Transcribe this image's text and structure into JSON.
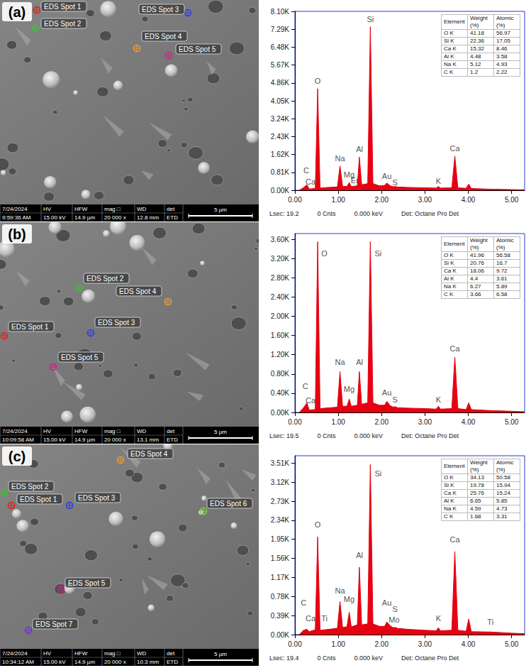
{
  "chart_data": [
    {
      "type": "line",
      "color": "#e60012",
      "grid": false,
      "x": [
        0.1,
        0.2,
        0.277,
        0.33,
        0.47,
        0.525,
        0.58,
        0.7,
        0.98,
        1.04,
        1.1,
        1.2,
        1.254,
        1.3,
        1.44,
        1.487,
        1.54,
        1.68,
        1.74,
        1.8,
        1.95,
        2.07,
        2.12,
        2.2,
        2.27,
        2.31,
        2.36,
        2.6,
        3,
        3.26,
        3.31,
        3.36,
        3.62,
        3.69,
        3.76,
        3.95,
        4.01,
        4.07,
        4.5,
        5,
        5.3
      ],
      "values": [
        0,
        120,
        250,
        60,
        80,
        4600,
        100,
        120,
        150,
        1100,
        180,
        170,
        350,
        170,
        200,
        1500,
        250,
        300,
        7400,
        300,
        200,
        220,
        330,
        200,
        160,
        170,
        150,
        130,
        110,
        100,
        170,
        100,
        110,
        1550,
        110,
        90,
        280,
        80,
        50,
        30,
        20
      ],
      "xlim": [
        0,
        5.3
      ],
      "xticks": [
        {
          "value": 0,
          "label": "0.00"
        },
        {
          "value": 1,
          "label": "1.00"
        },
        {
          "value": 2,
          "label": "2.00"
        },
        {
          "value": 3,
          "label": "3.00"
        },
        {
          "value": 4,
          "label": "4.00"
        },
        {
          "value": 5,
          "label": "5.00"
        }
      ],
      "ylim": [
        0,
        8100
      ],
      "yticks": [
        {
          "value": 0,
          "label": "0.00K"
        },
        {
          "value": 810,
          "label": "0.81K"
        },
        {
          "value": 1620,
          "label": "1.62K"
        },
        {
          "value": 2430,
          "label": "2.43K"
        },
        {
          "value": 3240,
          "label": "3.24K"
        },
        {
          "value": 4050,
          "label": "4.05K"
        },
        {
          "value": 4860,
          "label": "4.86K"
        },
        {
          "value": 5670,
          "label": "5.67K"
        },
        {
          "value": 6480,
          "label": "6.48K"
        },
        {
          "value": 7290,
          "label": "7.29K"
        },
        {
          "value": 8100,
          "label": "8.10K"
        }
      ],
      "annotations": [
        {
          "text": "C",
          "x": 0.26,
          "y": 900
        },
        {
          "text": "Ca",
          "x": 0.36,
          "y": 400
        },
        {
          "text": "O",
          "x": 0.525,
          "y": 4950
        },
        {
          "text": "Na",
          "x": 1.04,
          "y": 1450
        },
        {
          "text": "Mg",
          "x": 1.25,
          "y": 700
        },
        {
          "text": "Er",
          "x": 1.38,
          "y": 450
        },
        {
          "text": "Al",
          "x": 1.49,
          "y": 1850
        },
        {
          "text": "Si",
          "x": 1.74,
          "y": 7750
        },
        {
          "text": "Au",
          "x": 2.12,
          "y": 650
        },
        {
          "text": "S",
          "x": 2.31,
          "y": 350
        },
        {
          "text": "K",
          "x": 3.31,
          "y": 420
        },
        {
          "text": "Ca",
          "x": 3.69,
          "y": 1900
        }
      ],
      "table": {
        "header": [
          "Element",
          "Weight (%)",
          "Atomic (%)"
        ],
        "rows": [
          [
            "O K",
            41.18,
            56.97
          ],
          [
            "Si K",
            22.36,
            17.05
          ],
          [
            "Ca K",
            15.32,
            8.46
          ],
          [
            "Al K",
            4.48,
            3.58
          ],
          [
            "Na K",
            5.12,
            4.93
          ],
          [
            "C K",
            1.2,
            2.22
          ]
        ]
      },
      "footer": [
        "Lsec: 19.2",
        "0 Cnts",
        "0.000 keV",
        "Det: Octane Pro Det"
      ]
    },
    {
      "type": "line",
      "color": "#e60012",
      "grid": false,
      "x": [
        0.1,
        0.2,
        0.277,
        0.33,
        0.47,
        0.525,
        0.58,
        0.7,
        0.98,
        1.04,
        1.1,
        1.2,
        1.254,
        1.3,
        1.44,
        1.487,
        1.54,
        1.68,
        1.74,
        1.8,
        1.95,
        2.07,
        2.12,
        2.2,
        2.27,
        2.31,
        2.36,
        2.6,
        3,
        3.26,
        3.31,
        3.36,
        3.62,
        3.69,
        3.76,
        3.95,
        4.01,
        4.07,
        4.5,
        5,
        5.3
      ],
      "values": [
        0,
        100,
        200,
        50,
        60,
        3550,
        80,
        90,
        110,
        850,
        130,
        130,
        280,
        130,
        150,
        850,
        170,
        200,
        3550,
        200,
        150,
        150,
        230,
        140,
        110,
        120,
        100,
        90,
        80,
        70,
        130,
        70,
        80,
        1150,
        80,
        60,
        200,
        60,
        40,
        25,
        15
      ],
      "xlim": [
        0,
        5.3
      ],
      "xticks": [
        {
          "value": 0,
          "label": "0.00"
        },
        {
          "value": 1,
          "label": "1.00"
        },
        {
          "value": 2,
          "label": "2.00"
        },
        {
          "value": 3,
          "label": "3.00"
        },
        {
          "value": 4,
          "label": "4.00"
        },
        {
          "value": 5,
          "label": "5.00"
        }
      ],
      "ylim": [
        0,
        3720
      ],
      "yticks": [
        {
          "value": 0,
          "label": "0.00K"
        },
        {
          "value": 400,
          "label": "0.40K"
        },
        {
          "value": 800,
          "label": "0.80K"
        },
        {
          "value": 1200,
          "label": "1.20K"
        },
        {
          "value": 1600,
          "label": "1.60K"
        },
        {
          "value": 2000,
          "label": "2.00K"
        },
        {
          "value": 2400,
          "label": "2.40K"
        },
        {
          "value": 2800,
          "label": "2.80K"
        },
        {
          "value": 3200,
          "label": "3.20K"
        },
        {
          "value": 3600,
          "label": "3.60K"
        }
      ],
      "annotations": [
        {
          "text": "C",
          "x": 0.24,
          "y": 550
        },
        {
          "text": "Ca",
          "x": 0.36,
          "y": 250
        },
        {
          "text": "O",
          "x": 0.68,
          "y": 3300
        },
        {
          "text": "Na",
          "x": 1.04,
          "y": 1050
        },
        {
          "text": "Mg",
          "x": 1.25,
          "y": 480
        },
        {
          "text": "Al",
          "x": 1.49,
          "y": 1050
        },
        {
          "text": "Si",
          "x": 1.92,
          "y": 3300
        },
        {
          "text": "Au",
          "x": 2.12,
          "y": 420
        },
        {
          "text": "S",
          "x": 2.31,
          "y": 260
        },
        {
          "text": "K",
          "x": 3.31,
          "y": 260
        },
        {
          "text": "Ca",
          "x": 3.69,
          "y": 1330
        }
      ],
      "table": {
        "header": [
          "Element",
          "Weight (%)",
          "Atomic (%)"
        ],
        "rows": [
          [
            "O K",
            41.96,
            56.58
          ],
          [
            "Si K",
            20.76,
            16.7
          ],
          [
            "Ca K",
            18.06,
            9.72
          ],
          [
            "Al K",
            4.4,
            3.61
          ],
          [
            "Na K",
            6.27,
            5.89
          ],
          [
            "C K",
            3.66,
            6.58
          ]
        ]
      },
      "footer": [
        "Lsec: 19.5",
        "0 Cnts",
        "0.000 keV",
        "Det: Octane Pro Det"
      ]
    },
    {
      "type": "line",
      "color": "#e60012",
      "grid": false,
      "x": [
        0.1,
        0.2,
        0.277,
        0.33,
        0.47,
        0.525,
        0.58,
        0.7,
        0.98,
        1.04,
        1.1,
        1.2,
        1.254,
        1.3,
        1.44,
        1.487,
        1.54,
        1.68,
        1.74,
        1.8,
        1.95,
        2.07,
        2.12,
        2.2,
        2.27,
        2.31,
        2.36,
        2.6,
        3,
        3.26,
        3.31,
        3.36,
        3.62,
        3.69,
        3.76,
        3.95,
        4.01,
        4.07,
        4.5,
        5,
        5.3
      ],
      "values": [
        0,
        90,
        110,
        60,
        100,
        2000,
        90,
        100,
        130,
        680,
        150,
        160,
        460,
        160,
        200,
        1380,
        200,
        220,
        3480,
        220,
        170,
        170,
        260,
        180,
        140,
        150,
        130,
        110,
        90,
        80,
        140,
        80,
        90,
        1700,
        90,
        70,
        320,
        60,
        55,
        30,
        20
      ],
      "xlim": [
        0,
        5.3
      ],
      "xticks": [
        {
          "value": 0,
          "label": "0.00"
        },
        {
          "value": 1,
          "label": "1.00"
        },
        {
          "value": 2,
          "label": "2.00"
        },
        {
          "value": 3,
          "label": "3.00"
        },
        {
          "value": 4,
          "label": "4.00"
        },
        {
          "value": 5,
          "label": "5.00"
        }
      ],
      "ylim": [
        0,
        3660
      ],
      "yticks": [
        {
          "value": 0,
          "label": "0.00K"
        },
        {
          "value": 390,
          "label": "0.39K"
        },
        {
          "value": 780,
          "label": "0.78K"
        },
        {
          "value": 1170,
          "label": "1.17K"
        },
        {
          "value": 1560,
          "label": "1.56K"
        },
        {
          "value": 1950,
          "label": "1.95K"
        },
        {
          "value": 2340,
          "label": "2.34K"
        },
        {
          "value": 2730,
          "label": "2.73K"
        },
        {
          "value": 3120,
          "label": "3.12K"
        },
        {
          "value": 3510,
          "label": "3.51K"
        }
      ],
      "annotations": [
        {
          "text": "C",
          "x": 0.2,
          "y": 650
        },
        {
          "text": "Ca",
          "x": 0.36,
          "y": 330
        },
        {
          "text": "Ti",
          "x": 0.68,
          "y": 330
        },
        {
          "text": "O",
          "x": 0.525,
          "y": 2250
        },
        {
          "text": "Na",
          "x": 1.04,
          "y": 900
        },
        {
          "text": "Mg",
          "x": 1.25,
          "y": 720
        },
        {
          "text": "Al",
          "x": 1.49,
          "y": 1620
        },
        {
          "text": "Si",
          "x": 1.92,
          "y": 3300
        },
        {
          "text": "Au",
          "x": 2.12,
          "y": 650
        },
        {
          "text": "S",
          "x": 2.31,
          "y": 520
        },
        {
          "text": "Mo",
          "x": 2.29,
          "y": 300
        },
        {
          "text": "K",
          "x": 3.31,
          "y": 330
        },
        {
          "text": "Ca",
          "x": 3.69,
          "y": 1950
        },
        {
          "text": "Ti",
          "x": 4.51,
          "y": 260
        }
      ],
      "table": {
        "header": [
          "Element",
          "Weight (%)",
          "Atomic (%)"
        ],
        "rows": [
          [
            "O K",
            34.13,
            50.58
          ],
          [
            "Si K",
            19.78,
            15.94
          ],
          [
            "Ca K",
            25.76,
            15.24
          ],
          [
            "Al K",
            6.65,
            5.85
          ],
          [
            "Na K",
            4.59,
            4.73
          ],
          [
            "C K",
            1.68,
            3.31
          ]
        ]
      },
      "footer": [
        "Lsec: 19.4",
        "0 Cnts",
        "0.000 keV",
        "Det: Octane Pro Det"
      ]
    }
  ],
  "sem_images": [
    {
      "letter": "(a)",
      "spots": [
        "EDS Spot 1",
        "EDS Spot 2",
        "EDS Spot 3",
        "EDS Spot 4",
        "EDS Spot 5"
      ],
      "info": {
        "date": "7/24/2024",
        "time": "9:59:36 AM",
        "fields": [
          {
            "name": "HV",
            "value": "15.00 kV"
          },
          {
            "name": "HFW",
            "value": "14.9 µm"
          },
          {
            "name": "mag □",
            "value": "20 000 x"
          },
          {
            "name": "WD",
            "value": "12.8 mm"
          },
          {
            "name": "det",
            "value": "ETD"
          }
        ]
      },
      "scale_bar": "5 µm"
    },
    {
      "letter": "(b)",
      "spots": [
        "EDS Spot 1",
        "EDS Spot 2",
        "EDS Spot 3",
        "EDS Spot 4",
        "EDS Spot 5"
      ],
      "info": {
        "date": "7/24/2024",
        "time": "10:09:58 AM",
        "fields": [
          {
            "name": "HV",
            "value": "15.00 kV"
          },
          {
            "name": "HFW",
            "value": "14.9 µm"
          },
          {
            "name": "mag □",
            "value": "20 000 x"
          },
          {
            "name": "WD",
            "value": "13.1 mm"
          },
          {
            "name": "det",
            "value": "ETD"
          }
        ]
      },
      "scale_bar": "5 µm"
    },
    {
      "letter": "(c)",
      "spots": [
        "EDS Spot 1",
        "EDS Spot 2",
        "EDS Spot 3",
        "EDS Spot 4",
        "EDS Spot 5",
        "EDS Spot 6",
        "EDS Spot 7"
      ],
      "info": {
        "date": "7/24/2024",
        "time": "10:34:12 AM",
        "fields": [
          {
            "name": "HV",
            "value": "15.00 kV"
          },
          {
            "name": "HFW",
            "value": "14.9 µm"
          },
          {
            "name": "mag □",
            "value": "20 000 x"
          },
          {
            "name": "WD",
            "value": "10.3 mm"
          },
          {
            "name": "det",
            "value": "ETD"
          }
        ]
      },
      "scale_bar": "5 µm"
    }
  ]
}
